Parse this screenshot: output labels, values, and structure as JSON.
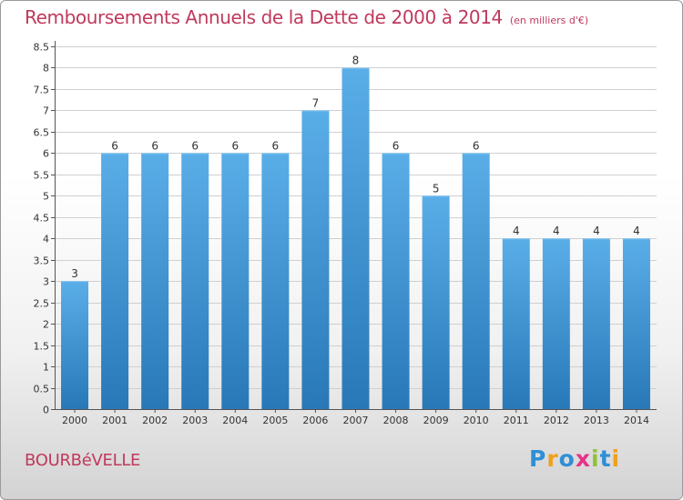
{
  "header": {
    "title": "Remboursements Annuels de la Dette de 2000 à 2014",
    "subtitle": "(en milliers d'€)"
  },
  "footer": {
    "place": "BOURBéVELLE",
    "logo": {
      "text": "Proxiti",
      "letter_colors": [
        "#2e8fd6",
        "#f0a020",
        "#2e8fd6",
        "#e8318a",
        "#8fc23a",
        "#2e8fd6",
        "#f0a020"
      ]
    }
  },
  "colors": {
    "title": "#c0395d",
    "bar_top": "#5aaee8",
    "bar_bottom": "#2878b8",
    "grid": "#d0d0d0",
    "axis": "#555555",
    "tick_label": "#333333"
  },
  "chart_data": {
    "type": "bar",
    "title": "Remboursements Annuels de la Dette de 2000 à 2014",
    "subtitle": "(en milliers d'€)",
    "categories": [
      "2000",
      "2001",
      "2002",
      "2003",
      "2004",
      "2005",
      "2006",
      "2007",
      "2008",
      "2009",
      "2010",
      "2011",
      "2012",
      "2013",
      "2014"
    ],
    "values": [
      3,
      6,
      6,
      6,
      6,
      6,
      7,
      8,
      6,
      5,
      6,
      4,
      4,
      4,
      4
    ],
    "data_labels": [
      "3",
      "6",
      "6",
      "6",
      "6",
      "6",
      "7",
      "8",
      "6",
      "5",
      "6",
      "4",
      "4",
      "4",
      "4"
    ],
    "ylim": [
      0,
      8.5
    ],
    "yticks": [
      "0",
      "0.5",
      "1",
      "1.5",
      "2",
      "2.5",
      "3",
      "3.5",
      "4",
      "4.5",
      "5",
      "5.5",
      "6",
      "6.5",
      "7",
      "7.5",
      "8",
      "8.5"
    ],
    "grid": true,
    "legend": "none"
  }
}
